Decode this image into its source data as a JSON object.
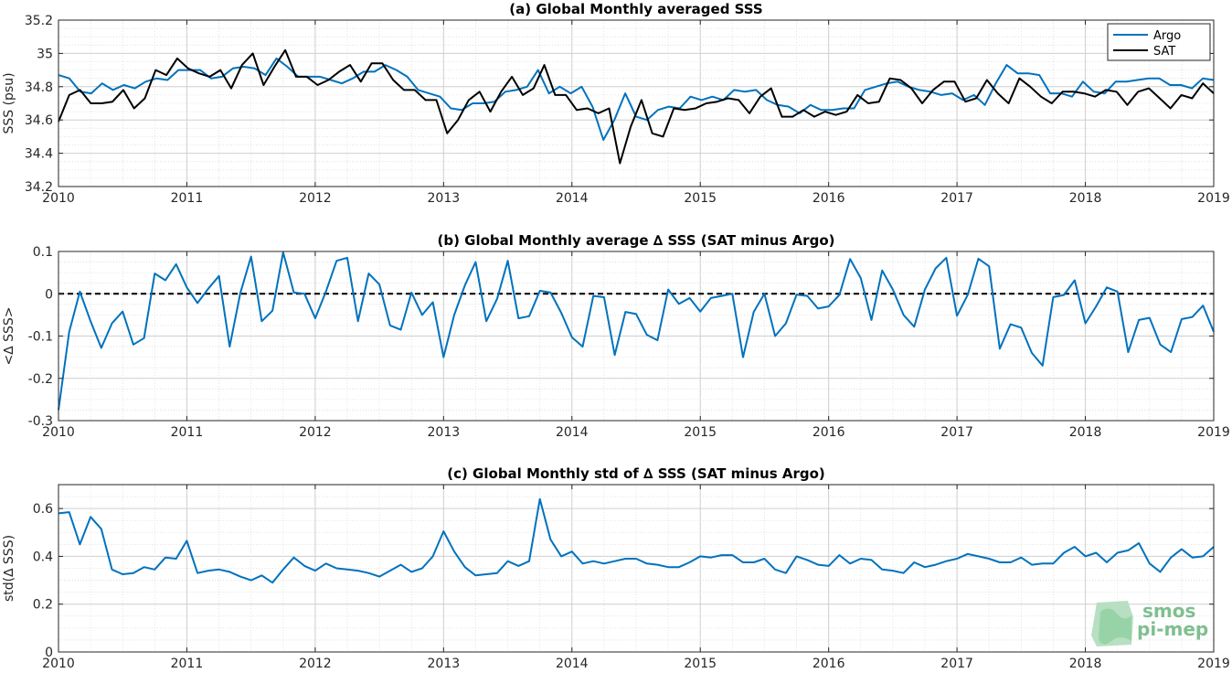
{
  "chart_data": [
    {
      "type": "line",
      "title": "(a) Global Monthly averaged SSS",
      "ylabel": "SSS (psu)",
      "xlim": [
        2010,
        2019
      ],
      "ylim": [
        34.2,
        35.2
      ],
      "xticks": [
        "2010",
        "2011",
        "2012",
        "2013",
        "2014",
        "2015",
        "2016",
        "2017",
        "2018",
        "2019"
      ],
      "yticks": [
        "34.2",
        "34.4",
        "34.6",
        "34.8",
        "35",
        "35.2"
      ],
      "legend_position": "top-right",
      "series": [
        {
          "name": "Argo",
          "color": "#0072BD",
          "values": [
            34.87,
            34.85,
            34.77,
            34.76,
            34.82,
            34.78,
            34.81,
            34.79,
            34.83,
            34.85,
            34.84,
            34.9,
            34.9,
            34.9,
            34.85,
            34.86,
            34.91,
            34.92,
            34.91,
            34.87,
            34.97,
            34.92,
            34.86,
            34.86,
            34.86,
            34.84,
            34.82,
            34.85,
            34.89,
            34.89,
            34.93,
            34.9,
            34.86,
            34.78,
            34.76,
            34.74,
            34.67,
            34.66,
            34.7,
            34.7,
            34.71,
            34.77,
            34.78,
            34.8,
            34.9,
            34.76,
            34.8,
            34.76,
            34.8,
            34.68,
            34.48,
            34.6,
            34.76,
            34.62,
            34.6,
            34.66,
            34.68,
            34.67,
            34.74,
            34.72,
            34.74,
            34.72,
            34.78,
            34.77,
            34.78,
            34.72,
            34.69,
            34.68,
            34.64,
            34.69,
            34.66,
            34.66,
            34.67,
            34.67,
            34.78,
            34.8,
            34.82,
            34.83,
            34.8,
            34.78,
            34.77,
            34.75,
            34.76,
            34.72,
            34.75,
            34.69,
            34.82,
            34.93,
            34.88,
            34.88,
            34.87,
            34.76,
            34.76,
            34.74,
            34.83,
            34.77,
            34.76,
            34.83,
            34.83,
            34.84,
            34.85,
            34.85,
            34.81,
            34.81,
            34.79,
            34.85,
            34.84
          ]
        },
        {
          "name": "SAT",
          "color": "#000000",
          "values": [
            34.59,
            34.75,
            34.78,
            34.7,
            34.7,
            34.71,
            34.78,
            34.67,
            34.73,
            34.9,
            34.87,
            34.97,
            34.91,
            34.88,
            34.86,
            34.9,
            34.79,
            34.93,
            35.0,
            34.81,
            34.92,
            35.02,
            34.86,
            34.86,
            34.81,
            34.84,
            34.89,
            34.93,
            34.83,
            34.94,
            34.94,
            34.84,
            34.78,
            34.78,
            34.72,
            34.72,
            34.52,
            34.6,
            34.72,
            34.77,
            34.65,
            34.77,
            34.86,
            34.75,
            34.79,
            34.93,
            34.75,
            34.75,
            34.66,
            34.67,
            34.64,
            34.67,
            34.34,
            34.56,
            34.72,
            34.52,
            34.5,
            34.67,
            34.66,
            34.67,
            34.7,
            34.71,
            34.73,
            34.72,
            34.64,
            34.74,
            34.79,
            34.62,
            34.62,
            34.66,
            34.62,
            34.65,
            34.63,
            34.65,
            34.75,
            34.7,
            34.71,
            34.85,
            34.84,
            34.79,
            34.7,
            34.78,
            34.83,
            34.83,
            34.71,
            34.73,
            34.84,
            34.76,
            34.7,
            34.85,
            34.8,
            34.74,
            34.7,
            34.77,
            34.77,
            34.76,
            34.74,
            34.78,
            34.77,
            34.69,
            34.77,
            34.79,
            34.73,
            34.67,
            34.75,
            34.73,
            34.82,
            34.76
          ]
        }
      ]
    },
    {
      "type": "line",
      "title": "(b) Global Monthly average ∆ SSS (SAT minus Argo)",
      "ylabel": "<∆ SSS>",
      "xlim": [
        2010,
        2019
      ],
      "ylim": [
        -0.3,
        0.1
      ],
      "xticks": [
        "2010",
        "2011",
        "2012",
        "2013",
        "2014",
        "2015",
        "2016",
        "2017",
        "2018",
        "2019"
      ],
      "yticks": [
        "-0.3",
        "-0.2",
        "-0.1",
        "0",
        "0.1"
      ],
      "reference_line": 0,
      "series": [
        {
          "name": "",
          "color": "#0072BD",
          "values": [
            -0.275,
            -0.09,
            0.005,
            -0.065,
            -0.128,
            -0.07,
            -0.042,
            -0.12,
            -0.105,
            0.048,
            0.032,
            0.07,
            0.015,
            -0.022,
            0.012,
            0.042,
            -0.125,
            0.002,
            0.088,
            -0.065,
            -0.04,
            0.098,
            0.003,
            0.0,
            -0.058,
            0.005,
            0.078,
            0.085,
            -0.065,
            0.048,
            0.022,
            -0.075,
            -0.085,
            0.003,
            -0.05,
            -0.02,
            -0.15,
            -0.05,
            0.02,
            0.075,
            -0.065,
            -0.012,
            0.078,
            -0.058,
            -0.053,
            0.007,
            0.003,
            -0.045,
            -0.103,
            -0.125,
            -0.005,
            -0.008,
            -0.145,
            -0.043,
            -0.048,
            -0.097,
            -0.11,
            0.01,
            -0.024,
            -0.01,
            -0.042,
            -0.01,
            -0.005,
            0.0,
            -0.15,
            -0.043,
            0.0,
            -0.1,
            -0.07,
            -0.002,
            -0.005,
            -0.035,
            -0.03,
            -0.003,
            0.082,
            0.037,
            -0.062,
            0.055,
            0.01,
            -0.05,
            -0.078,
            0.01,
            0.06,
            0.085,
            -0.052,
            -0.003,
            0.083,
            0.065,
            -0.13,
            -0.072,
            -0.08,
            -0.14,
            -0.17,
            -0.008,
            -0.003,
            0.032,
            -0.07,
            -0.03,
            0.015,
            0.005,
            -0.138,
            -0.062,
            -0.057,
            -0.12,
            -0.138,
            -0.06,
            -0.055,
            -0.028,
            -0.09
          ]
        }
      ]
    },
    {
      "type": "line",
      "title": "(c) Global Monthly std of ∆ SSS (SAT minus Argo)",
      "ylabel": "std(∆ SSS)",
      "xlim": [
        2010,
        2019
      ],
      "ylim": [
        0,
        0.7
      ],
      "xticks": [
        "2010",
        "2011",
        "2012",
        "2013",
        "2014",
        "2015",
        "2016",
        "2017",
        "2018",
        "2019"
      ],
      "yticks": [
        "0",
        "0.2",
        "0.4",
        "0.6"
      ],
      "series": [
        {
          "name": "",
          "color": "#0072BD",
          "values": [
            0.58,
            0.585,
            0.45,
            0.565,
            0.515,
            0.345,
            0.325,
            0.33,
            0.355,
            0.345,
            0.395,
            0.39,
            0.465,
            0.33,
            0.34,
            0.345,
            0.335,
            0.315,
            0.3,
            0.32,
            0.29,
            0.345,
            0.395,
            0.36,
            0.34,
            0.37,
            0.35,
            0.345,
            0.34,
            0.33,
            0.315,
            0.34,
            0.365,
            0.335,
            0.35,
            0.4,
            0.505,
            0.42,
            0.355,
            0.32,
            0.325,
            0.33,
            0.38,
            0.36,
            0.38,
            0.64,
            0.47,
            0.4,
            0.42,
            0.37,
            0.38,
            0.37,
            0.38,
            0.39,
            0.39,
            0.37,
            0.365,
            0.355,
            0.355,
            0.375,
            0.4,
            0.395,
            0.405,
            0.405,
            0.375,
            0.375,
            0.39,
            0.345,
            0.33,
            0.4,
            0.385,
            0.365,
            0.36,
            0.405,
            0.37,
            0.39,
            0.385,
            0.345,
            0.34,
            0.33,
            0.375,
            0.355,
            0.365,
            0.38,
            0.39,
            0.41,
            0.4,
            0.39,
            0.375,
            0.375,
            0.395,
            0.365,
            0.37,
            0.37,
            0.415,
            0.44,
            0.4,
            0.415,
            0.375,
            0.415,
            0.425,
            0.455,
            0.37,
            0.335,
            0.395,
            0.43,
            0.395,
            0.4,
            0.44
          ]
        }
      ]
    }
  ],
  "watermark": {
    "line1": "smos",
    "line2": "pi-mep"
  }
}
